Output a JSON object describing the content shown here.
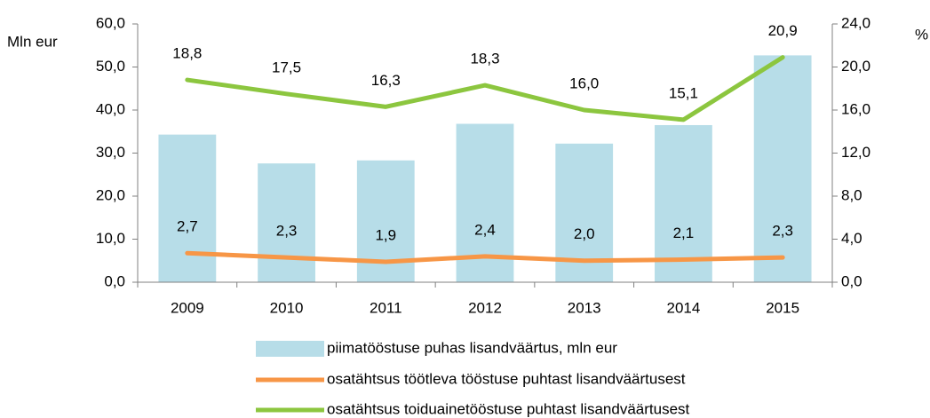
{
  "chart_data": {
    "type": "bar-line",
    "y_label": "Mln eur",
    "y2_label": "%",
    "categories": [
      "2009",
      "2010",
      "2011",
      "2012",
      "2013",
      "2014",
      "2015"
    ],
    "series": [
      {
        "name": "piimatööstuse puhas lisandväärtus, mln eur",
        "type": "bar",
        "axis": "y",
        "color": "#b7dde8",
        "values": [
          34.3,
          27.6,
          28.3,
          36.8,
          32.2,
          36.5,
          52.7
        ]
      },
      {
        "name": "osatähtsus töötleva tööstuse puhtast lisandväärtusest",
        "type": "line",
        "axis": "y2",
        "color": "#f79646",
        "values": [
          2.7,
          2.3,
          1.9,
          2.4,
          2.0,
          2.1,
          2.3
        ],
        "value_labels": [
          "2,7",
          "2,3",
          "1,9",
          "2,4",
          "2,0",
          "2,1",
          "2,3"
        ]
      },
      {
        "name": "osatähtsus toiduainetööstuse puhtast lisandväärtusest",
        "type": "line",
        "axis": "y2",
        "color": "#8cc63f",
        "values": [
          18.8,
          17.5,
          16.3,
          18.3,
          16.0,
          15.1,
          20.9
        ],
        "value_labels": [
          "18,8",
          "17,5",
          "16,3",
          "18,3",
          "16,0",
          "15,1",
          "20,9"
        ]
      }
    ],
    "ylim": [
      0,
      60
    ],
    "yticks": [
      {
        "value": 0,
        "label": "0,0"
      },
      {
        "value": 10,
        "label": "10,0"
      },
      {
        "value": 20,
        "label": "20,0"
      },
      {
        "value": 30,
        "label": "30,0"
      },
      {
        "value": 40,
        "label": "40,0"
      },
      {
        "value": 50,
        "label": "50,0"
      },
      {
        "value": 60,
        "label": "60,0"
      }
    ],
    "y2lim": [
      0,
      24
    ],
    "y2ticks": [
      {
        "value": 0,
        "label": "0,0"
      },
      {
        "value": 4,
        "label": "4,0"
      },
      {
        "value": 8,
        "label": "8,0"
      },
      {
        "value": 12,
        "label": "12,0"
      },
      {
        "value": 16,
        "label": "16,0"
      },
      {
        "value": 20,
        "label": "20,0"
      },
      {
        "value": 24,
        "label": "24,0"
      }
    ],
    "grid": false
  }
}
